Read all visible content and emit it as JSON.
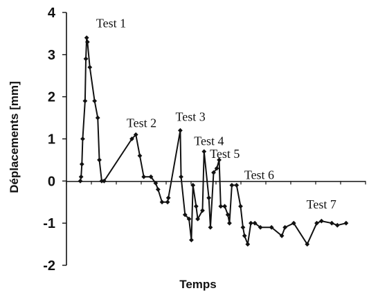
{
  "chart_data": {
    "type": "line",
    "title": "",
    "xlabel": "Temps",
    "ylabel": "Déplacements [mm]",
    "xlim": [
      0,
      100
    ],
    "ylim": [
      -2,
      4
    ],
    "y_ticks": [
      "4",
      "3",
      "2",
      "1",
      "0",
      "-1",
      "-2"
    ],
    "grid": false,
    "legend": "none",
    "series": [
      {
        "color": "#111111",
        "marker": "diamond",
        "x": [
          0.0,
          0.3,
          0.6,
          0.9,
          1.8,
          2.1,
          2.4,
          2.7,
          3.6,
          5.4,
          6.6,
          7.2,
          8.1,
          9.0,
          19.5,
          21.0,
          22.5,
          24.0,
          26.7,
          28.5,
          29.4,
          30.9,
          33.0,
          33.3,
          37.8,
          38.1,
          39.6,
          41.1,
          42.0,
          42.6,
          43.8,
          44.4,
          46.2,
          46.8,
          48.6,
          49.2,
          50.4,
          51.6,
          52.5,
          53.1,
          54.6,
          55.8,
          56.4,
          57.3,
          59.1,
          60.6,
          61.5,
          62.1,
          63.3,
          64.5,
          66.0,
          68.1,
          72.3,
          76.2,
          77.4,
          80.7,
          85.8,
          89.4,
          91.2,
          95.1,
          97.2,
          100.5
        ]
      }
    ],
    "series_y": [
      0.0,
      0.1,
      0.4,
      1.0,
      1.9,
      2.9,
      3.4,
      3.3,
      2.7,
      1.9,
      1.5,
      0.5,
      0.0,
      0.0,
      1.0,
      1.1,
      0.6,
      0.1,
      0.1,
      -0.05,
      -0.2,
      -0.5,
      -0.5,
      -0.4,
      1.2,
      0.1,
      -0.8,
      -0.9,
      -1.4,
      -0.1,
      -0.6,
      -0.9,
      -0.7,
      0.7,
      -0.4,
      -1.1,
      0.2,
      0.3,
      0.5,
      -0.6,
      -0.6,
      -0.8,
      -1.0,
      -0.1,
      -0.1,
      -0.6,
      -1.1,
      -1.3,
      -1.5,
      -1.0,
      -1.0,
      -1.1,
      -1.1,
      -1.3,
      -1.1,
      -1.0,
      -1.5,
      -1.0,
      -0.95,
      -1.0,
      -1.05,
      -1.0
    ],
    "annotations": [
      {
        "text": "Test 1",
        "x": 6.0,
        "y": 3.65
      },
      {
        "text": "Test 2",
        "x": 17.5,
        "y": 1.28
      },
      {
        "text": "Test 3",
        "x": 36.0,
        "y": 1.43
      },
      {
        "text": "Test 4",
        "x": 43.0,
        "y": 0.85
      },
      {
        "text": "Test 5",
        "x": 49.0,
        "y": 0.55
      },
      {
        "text": "Test 6",
        "x": 62.0,
        "y": 0.05
      },
      {
        "text": "Test 7",
        "x": 85.5,
        "y": -0.65
      }
    ],
    "colors": {
      "line": "#111111",
      "axis": "#111111",
      "text": "#111111"
    }
  }
}
